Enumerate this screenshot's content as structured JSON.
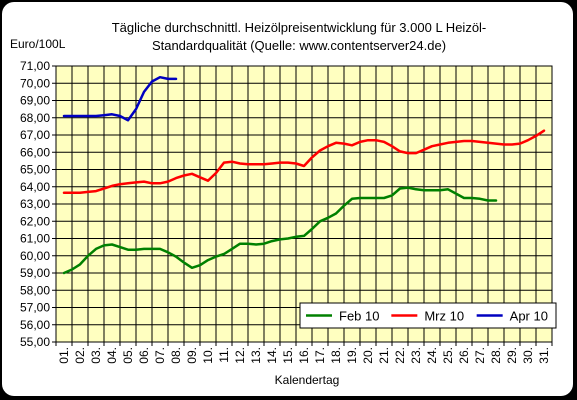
{
  "chart_data": {
    "type": "line",
    "title_line1": "Tägliche durchschnittl. Heizölpreisentwicklung für 3.000 L Heizöl-",
    "title_line2": "Standardqualität (Quelle: www.contentserver24.de)",
    "ylabel": "Euro/100L",
    "xlabel": "Kalendertag",
    "ylim": [
      55,
      71
    ],
    "ytick_step": 1,
    "grid": true,
    "legend_position": "bottom-right",
    "plot_background": "#FFFFC0",
    "categories": [
      "01.",
      "02.",
      "03.",
      "04.",
      "05.",
      "06.",
      "07.",
      "08.",
      "09.",
      "10.",
      "11.",
      "12.",
      "13.",
      "14.",
      "15.",
      "16.",
      "17.",
      "18.",
      "19.",
      "20.",
      "21.",
      "22.",
      "23.",
      "24.",
      "25.",
      "26.",
      "27.",
      "28.",
      "29.",
      "30.",
      "31."
    ],
    "yticks": [
      "55,00",
      "56,00",
      "57,00",
      "58,00",
      "59,00",
      "60,00",
      "61,00",
      "62,00",
      "63,00",
      "64,00",
      "65,00",
      "66,00",
      "67,00",
      "68,00",
      "69,00",
      "70,00",
      "71,00"
    ],
    "series": [
      {
        "name": "Feb 10",
        "color": "#008000",
        "x": [
          1,
          1.5,
          2,
          2.5,
          3,
          3.5,
          4,
          4.5,
          5,
          5.5,
          6,
          6.5,
          7,
          7.5,
          8,
          8.5,
          9,
          9.5,
          10,
          10.5,
          11,
          11.5,
          12,
          12.5,
          13,
          13.5,
          14,
          14.5,
          15,
          15.5,
          16,
          16.5,
          17,
          17.5,
          18,
          18.5,
          19,
          19.5,
          20,
          20.5,
          21,
          21.5,
          22,
          22.5,
          23,
          23.5,
          24,
          24.5,
          25,
          25.5,
          26,
          26.5,
          27,
          27.5,
          28
        ],
        "values": [
          59.0,
          59.2,
          59.5,
          60.0,
          60.4,
          60.6,
          60.65,
          60.5,
          60.35,
          60.35,
          60.4,
          60.4,
          60.4,
          60.2,
          59.95,
          59.6,
          59.3,
          59.45,
          59.75,
          59.95,
          60.1,
          60.4,
          60.7,
          60.7,
          60.65,
          60.7,
          60.85,
          60.95,
          61.0,
          61.1,
          61.15,
          61.55,
          62.0,
          62.2,
          62.45,
          62.9,
          63.3,
          63.35,
          63.35,
          63.35,
          63.35,
          63.5,
          63.9,
          63.95,
          63.85,
          63.8,
          63.8,
          63.8,
          63.85,
          63.6,
          63.35,
          63.35,
          63.3,
          63.2,
          63.2
        ]
      },
      {
        "name": "Mrz 10",
        "color": "#FF0000",
        "x": [
          1,
          1.5,
          2,
          2.5,
          3,
          3.5,
          4,
          4.5,
          5,
          5.5,
          6,
          6.5,
          7,
          7.5,
          8,
          8.5,
          9,
          9.5,
          10,
          10.5,
          11,
          11.5,
          12,
          12.5,
          13,
          13.5,
          14,
          14.5,
          15,
          15.5,
          16,
          16.5,
          17,
          17.5,
          18,
          18.5,
          19,
          19.5,
          20,
          20.5,
          21,
          21.5,
          22,
          22.5,
          23,
          23.5,
          24,
          24.5,
          25,
          25.5,
          26,
          26.5,
          27,
          27.5,
          28,
          28.5,
          29,
          29.5,
          30,
          30.5,
          31
        ],
        "values": [
          63.65,
          63.65,
          63.65,
          63.7,
          63.75,
          63.9,
          64.05,
          64.15,
          64.2,
          64.25,
          64.3,
          64.2,
          64.2,
          64.3,
          64.5,
          64.65,
          64.75,
          64.55,
          64.35,
          64.8,
          65.4,
          65.45,
          65.35,
          65.3,
          65.3,
          65.3,
          65.35,
          65.4,
          65.4,
          65.35,
          65.2,
          65.7,
          66.1,
          66.35,
          66.55,
          66.5,
          66.4,
          66.6,
          66.7,
          66.7,
          66.6,
          66.35,
          66.05,
          65.95,
          65.95,
          66.15,
          66.35,
          66.45,
          66.55,
          66.6,
          66.65,
          66.65,
          66.6,
          66.55,
          66.5,
          66.45,
          66.45,
          66.5,
          66.7,
          66.95,
          67.25
        ]
      },
      {
        "name": "Apr 10",
        "color": "#0000C0",
        "x": [
          1,
          1.5,
          2,
          2.5,
          3,
          3.5,
          4,
          4.5,
          5,
          5.5,
          6,
          6.5,
          7,
          7.5,
          8
        ],
        "values": [
          68.1,
          68.1,
          68.1,
          68.1,
          68.1,
          68.15,
          68.2,
          68.1,
          67.85,
          68.5,
          69.5,
          70.1,
          70.35,
          70.25,
          70.25
        ]
      }
    ]
  }
}
